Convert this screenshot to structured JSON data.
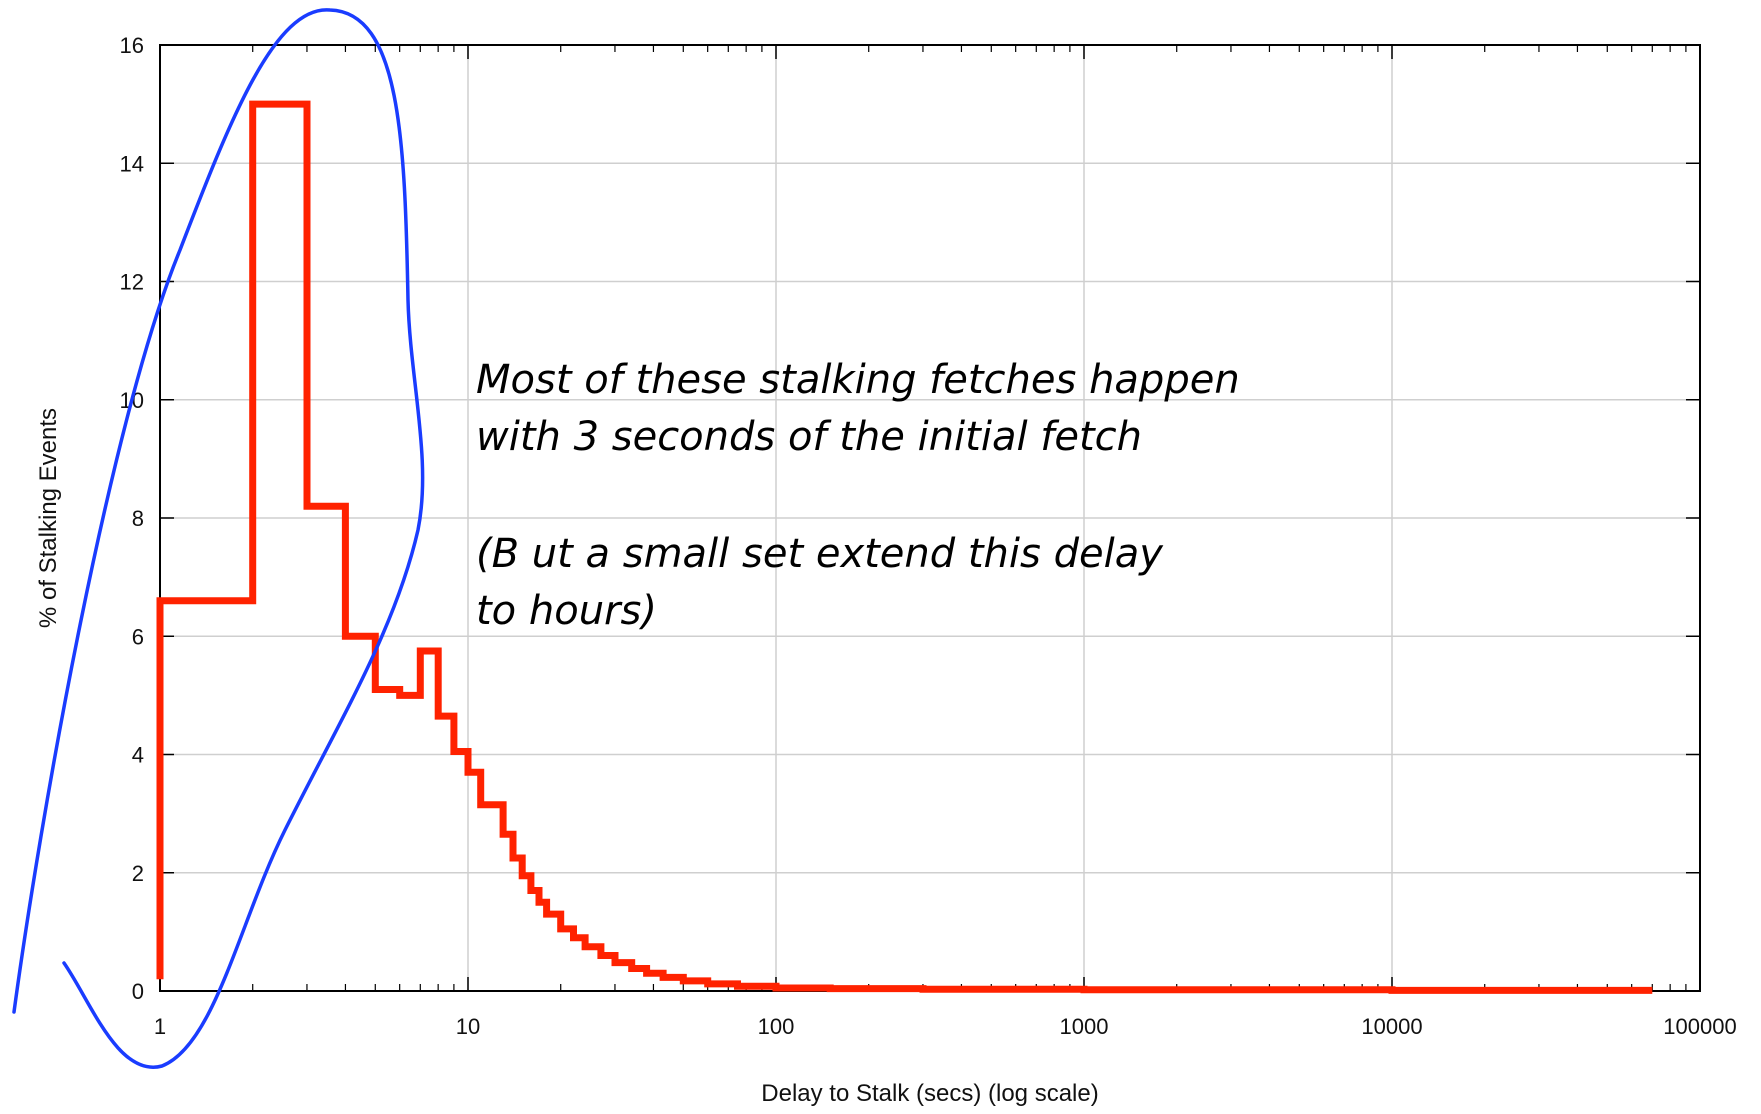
{
  "chart_data": {
    "type": "line",
    "title": "",
    "xlabel": "Delay to Stalk (secs) (log scale)",
    "ylabel": "% of Stalking Events",
    "x_scale": "log",
    "xlim": [
      1,
      100000
    ],
    "ylim": [
      0,
      16
    ],
    "grid": true,
    "legend": "none",
    "x_ticks": [
      "1",
      "10",
      "100",
      "1000",
      "10000",
      "100000"
    ],
    "y_ticks": [
      "0",
      "2",
      "4",
      "6",
      "8",
      "10",
      "12",
      "14",
      "16"
    ],
    "series": [
      {
        "line_style": "step",
        "color": "#ff2200",
        "points": [
          [
            1,
            0.2
          ],
          [
            1,
            6.6
          ],
          [
            2,
            6.6
          ],
          [
            2,
            15.0
          ],
          [
            3,
            15.0
          ],
          [
            3,
            8.2
          ],
          [
            4,
            8.2
          ],
          [
            4,
            6.0
          ],
          [
            5,
            6.0
          ],
          [
            5,
            5.1
          ],
          [
            6,
            5.1
          ],
          [
            6,
            5.0
          ],
          [
            7,
            5.0
          ],
          [
            7,
            5.75
          ],
          [
            8,
            5.75
          ],
          [
            8,
            4.65
          ],
          [
            9,
            4.65
          ],
          [
            9,
            4.05
          ],
          [
            10,
            4.05
          ],
          [
            10,
            3.7
          ],
          [
            11,
            3.7
          ],
          [
            11,
            3.15
          ],
          [
            13,
            3.15
          ],
          [
            13,
            2.65
          ],
          [
            14,
            2.65
          ],
          [
            14,
            2.25
          ],
          [
            15,
            2.25
          ],
          [
            15,
            1.95
          ],
          [
            16,
            1.95
          ],
          [
            16,
            1.7
          ],
          [
            17,
            1.7
          ],
          [
            17,
            1.5
          ],
          [
            18,
            1.5
          ],
          [
            18,
            1.3
          ],
          [
            20,
            1.3
          ],
          [
            20,
            1.05
          ],
          [
            22,
            1.05
          ],
          [
            22,
            0.9
          ],
          [
            24,
            0.9
          ],
          [
            24,
            0.75
          ],
          [
            27,
            0.75
          ],
          [
            27,
            0.6
          ],
          [
            30,
            0.6
          ],
          [
            30,
            0.48
          ],
          [
            34,
            0.48
          ],
          [
            34,
            0.38
          ],
          [
            38,
            0.38
          ],
          [
            38,
            0.3
          ],
          [
            43,
            0.3
          ],
          [
            43,
            0.23
          ],
          [
            50,
            0.23
          ],
          [
            50,
            0.17
          ],
          [
            60,
            0.17
          ],
          [
            60,
            0.12
          ],
          [
            75,
            0.12
          ],
          [
            75,
            0.08
          ],
          [
            100,
            0.08
          ],
          [
            100,
            0.05
          ],
          [
            150,
            0.05
          ],
          [
            150,
            0.04
          ],
          [
            300,
            0.04
          ],
          [
            300,
            0.03
          ],
          [
            1000,
            0.03
          ],
          [
            1000,
            0.02
          ],
          [
            10000,
            0.02
          ],
          [
            10000,
            0.01
          ],
          [
            70000,
            0.01
          ]
        ]
      }
    ],
    "annotations": [
      {
        "lines": [
          "Most of these stalking fetches happen",
          "with 3 seconds of the initial fetch",
          "",
          "(B ut a small set extend this delay",
          "to hours)"
        ],
        "style": "handwritten",
        "color": "#000000"
      }
    ],
    "highlight": {
      "shape": "freehand loop around x = 1–8",
      "color": "#1a3cff"
    }
  }
}
